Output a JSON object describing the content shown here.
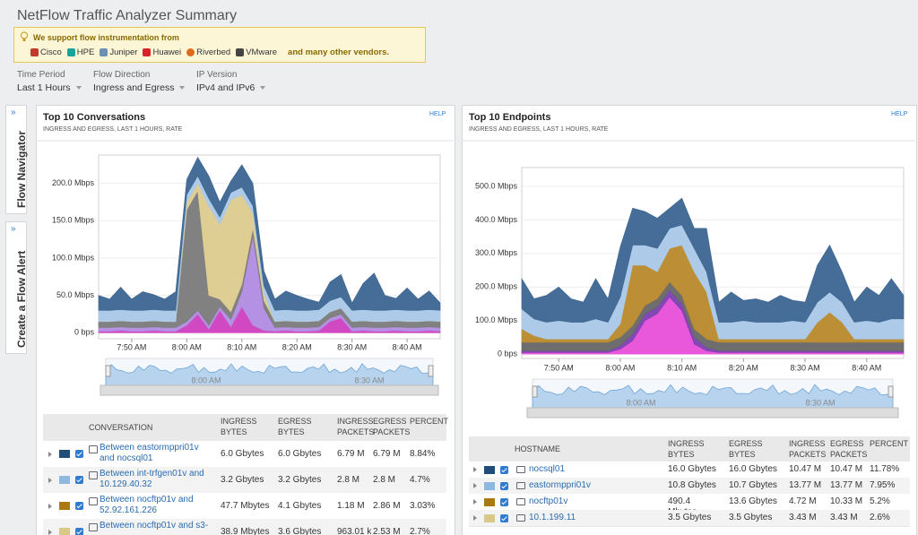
{
  "header": {
    "title": "NetFlow Traffic Analyzer Summary"
  },
  "banner": {
    "text": "We support flow instrumentation from",
    "vendors": [
      "Cisco",
      "HPE",
      "Juniper",
      "Huawei",
      "Riverbed",
      "VMware"
    ],
    "more": "and many other vendors."
  },
  "filters": [
    {
      "label": "Time Period",
      "value": "Last 1 Hours"
    },
    {
      "label": "Flow Direction",
      "value": "Ingress and Egress"
    },
    {
      "label": "IP Version",
      "value": "IPv4 and IPv6"
    }
  ],
  "sidebar": [
    "Flow Navigator",
    "Create a Flow Alert"
  ],
  "panels": [
    {
      "title": "Top 10 Conversations",
      "subtitle": "INGRESS AND EGRESS, LAST 1 HOURS, RATE",
      "help": "HELP",
      "chart": {
        "type": "area",
        "stacked": true,
        "grid": true,
        "x": [
          464,
          466,
          468,
          470,
          472,
          474,
          476,
          478,
          480,
          482,
          484,
          486,
          488,
          490,
          492,
          494,
          496,
          498,
          500,
          502,
          504,
          506,
          508,
          510,
          512,
          514,
          516,
          518,
          520,
          522,
          524,
          526
        ],
        "xlim": [
          464,
          526
        ],
        "xticks": [
          {
            "value": 470,
            "label": "7:50 AM"
          },
          {
            "value": 480,
            "label": "8:00 AM"
          },
          {
            "value": 490,
            "label": "8:10 AM"
          },
          {
            "value": 500,
            "label": "8:20 AM"
          },
          {
            "value": 510,
            "label": "8:30 AM"
          },
          {
            "value": 520,
            "label": "8:40 AM"
          }
        ],
        "ylim": [
          -8,
          238
        ],
        "yticks": [
          {
            "value": 0,
            "label": "0 bps"
          },
          {
            "value": 50,
            "label": "50.0 Mbps"
          },
          {
            "value": 100,
            "label": "100.0 Mbps"
          },
          {
            "value": 150,
            "label": "150.0 Mbps"
          },
          {
            "value": 200,
            "label": "200.0 Mbps"
          }
        ],
        "series": [
          {
            "color": "#cf3fbf",
            "values": [
              2,
              2,
              3,
              2,
              2,
              3,
              2,
              2,
              10,
              25,
              5,
              30,
              8,
              35,
              10,
              3,
              2,
              3,
              2,
              2,
              3,
              15,
              20,
              2,
              3,
              2,
              2,
              3,
              2,
              2,
              3,
              2
            ]
          },
          {
            "color": "#b08be0",
            "values": [
              5,
              5,
              5,
              5,
              5,
              5,
              5,
              5,
              5,
              5,
              5,
              5,
              10,
              20,
              120,
              30,
              5,
              5,
              5,
              5,
              5,
              5,
              5,
              5,
              5,
              5,
              5,
              5,
              5,
              5,
              5,
              5
            ]
          },
          {
            "color": "#7a7a7a",
            "values": [
              8,
              8,
              8,
              8,
              8,
              8,
              8,
              8,
              150,
              160,
              40,
              10,
              10,
              10,
              10,
              10,
              8,
              8,
              8,
              8,
              8,
              8,
              8,
              8,
              8,
              8,
              8,
              8,
              8,
              8,
              8,
              8
            ]
          },
          {
            "color": "#dccb8e",
            "values": [
              0,
              0,
              0,
              0,
              0,
              0,
              0,
              0,
              10,
              10,
              120,
              100,
              150,
              120,
              20,
              10,
              0,
              0,
              0,
              0,
              0,
              0,
              0,
              0,
              0,
              0,
              0,
              0,
              0,
              0,
              0,
              0
            ]
          },
          {
            "color": "#a9c8e8",
            "values": [
              15,
              15,
              15,
              15,
              15,
              15,
              15,
              15,
              10,
              10,
              10,
              10,
              10,
              10,
              10,
              10,
              15,
              15,
              15,
              15,
              15,
              15,
              15,
              15,
              15,
              15,
              15,
              15,
              15,
              15,
              15,
              15
            ]
          },
          {
            "color": "#3b6591",
            "values": [
              20,
              15,
              30,
              15,
              25,
              20,
              15,
              25,
              20,
              25,
              30,
              20,
              15,
              30,
              30,
              20,
              15,
              25,
              20,
              15,
              10,
              25,
              30,
              10,
              35,
              50,
              20,
              15,
              30,
              15,
              25,
              10
            ]
          }
        ]
      },
      "navigator": {
        "labels": [
          "8:00 AM",
          "8:30 AM"
        ]
      },
      "table": {
        "columns": [
          "CONVERSATION",
          "INGRESS BYTES",
          "EGRESS BYTES",
          "INGRESS PACKETS",
          "EGRESS PACKETS",
          "PERCENT"
        ],
        "rows": [
          {
            "color": "#1f4e79",
            "cells": [
              "Between eastormppri01v and nocsql01",
              "6.0 Gbytes",
              "6.0 Gbytes",
              "6.79 M",
              "6.79 M",
              "8.84%"
            ]
          },
          {
            "color": "#8fb8e0",
            "cells": [
              "Between int-trfgen01v and 10.129.40.32",
              "3.2 Gbytes",
              "3.2 Gbytes",
              "2.8 M",
              "2.8 M",
              "4.7%"
            ]
          },
          {
            "color": "#a87a10",
            "cells": [
              "Between nocftp01v and 52.92.161.226",
              "47.7 Mbytes",
              "4.1 Gbytes",
              "1.18 M",
              "2.86 M",
              "3.03%"
            ]
          },
          {
            "color": "#d8c98a",
            "cells": [
              "Between nocftp01v and s3-",
              "38.9 Mbytes",
              "3.6 Gbytes",
              "963.01 k",
              "2.53 M",
              "2.7%"
            ]
          }
        ]
      }
    },
    {
      "title": "Top 10 Endpoints",
      "subtitle": "INGRESS AND EGRESS, LAST 1 HOURS, RATE",
      "help": "HELP",
      "chart": {
        "type": "area",
        "stacked": true,
        "grid": true,
        "x": [
          464,
          466,
          468,
          470,
          472,
          474,
          476,
          478,
          480,
          482,
          484,
          486,
          488,
          490,
          492,
          494,
          496,
          498,
          500,
          502,
          504,
          506,
          508,
          510,
          512,
          514,
          516,
          518,
          520,
          522,
          524,
          526
        ],
        "xlim": [
          464,
          526
        ],
        "xticks": [
          {
            "value": 470,
            "label": "7:50 AM"
          },
          {
            "value": 480,
            "label": "8:00 AM"
          },
          {
            "value": 490,
            "label": "8:10 AM"
          },
          {
            "value": 500,
            "label": "8:20 AM"
          },
          {
            "value": 510,
            "label": "8:30 AM"
          },
          {
            "value": 520,
            "label": "8:40 AM"
          }
        ],
        "ylim": [
          -13,
          556
        ],
        "yticks": [
          {
            "value": 0,
            "label": "0 bps"
          },
          {
            "value": 100,
            "label": "100.0 Mbps"
          },
          {
            "value": 200,
            "label": "200.0 Mbps"
          },
          {
            "value": 300,
            "label": "300.0 Mbps"
          },
          {
            "value": 400,
            "label": "400.0 Mbps"
          },
          {
            "value": 500,
            "label": "500.0 Mbps"
          }
        ],
        "series": [
          {
            "color": "#e84fd8",
            "values": [
              5,
              5,
              5,
              5,
              5,
              5,
              5,
              5,
              15,
              40,
              100,
              120,
              170,
              130,
              30,
              10,
              5,
              5,
              5,
              5,
              5,
              5,
              5,
              5,
              5,
              5,
              5,
              5,
              5,
              5,
              5,
              5
            ]
          },
          {
            "color": "#7b3fb0",
            "values": [
              5,
              5,
              5,
              5,
              5,
              5,
              5,
              5,
              10,
              20,
              20,
              20,
              20,
              20,
              20,
              10,
              5,
              5,
              5,
              5,
              5,
              5,
              5,
              5,
              5,
              5,
              5,
              5,
              5,
              5,
              5,
              5
            ]
          },
          {
            "color": "#666666",
            "values": [
              25,
              25,
              25,
              25,
              25,
              25,
              25,
              25,
              25,
              25,
              25,
              25,
              25,
              25,
              25,
              25,
              25,
              25,
              25,
              25,
              25,
              25,
              25,
              25,
              25,
              25,
              25,
              25,
              25,
              25,
              25,
              25
            ]
          },
          {
            "color": "#b8892b",
            "values": [
              40,
              20,
              10,
              10,
              10,
              10,
              10,
              10,
              40,
              180,
              120,
              80,
              100,
              150,
              170,
              140,
              10,
              10,
              10,
              10,
              10,
              10,
              10,
              10,
              60,
              90,
              60,
              10,
              10,
              10,
              10,
              10
            ]
          },
          {
            "color": "#a9c8e8",
            "values": [
              60,
              50,
              50,
              55,
              50,
              50,
              60,
              50,
              80,
              60,
              60,
              70,
              60,
              60,
              70,
              60,
              50,
              50,
              55,
              50,
              50,
              50,
              55,
              50,
              60,
              60,
              60,
              50,
              55,
              50,
              60,
              60
            ]
          },
          {
            "color": "#3b6591",
            "values": [
              90,
              60,
              80,
              100,
              70,
              60,
              120,
              70,
              150,
              110,
              100,
              90,
              60,
              80,
              60,
              130,
              60,
              90,
              60,
              70,
              60,
              80,
              60,
              60,
              110,
              140,
              90,
              60,
              100,
              80,
              120,
              70
            ]
          }
        ]
      },
      "navigator": {
        "labels": [
          "8:00 AM",
          "8:30 AM"
        ]
      },
      "table": {
        "columns": [
          "HOSTNAME",
          "INGRESS BYTES",
          "EGRESS BYTES",
          "INGRESS PACKETS",
          "EGRESS PACKETS",
          "PERCENT"
        ],
        "rows": [
          {
            "color": "#1f4e79",
            "cells": [
              "nocsql01",
              "16.0 Gbytes",
              "16.0 Gbytes",
              "10.47 M",
              "10.47 M",
              "11.78%"
            ]
          },
          {
            "color": "#8fb8e0",
            "cells": [
              "eastormppri01v",
              "10.8 Gbytes",
              "10.7 Gbytes",
              "13.77 M",
              "13.77 M",
              "7.95%"
            ]
          },
          {
            "color": "#a87a10",
            "cells": [
              "nocftp01v",
              "490.4 Mbytes",
              "13.6 Gbytes",
              "4.72 M",
              "10.33 M",
              "5.2%"
            ]
          },
          {
            "color": "#d8c98a",
            "cells": [
              "10.1.199.11",
              "3.5 Gbytes",
              "3.5 Gbytes",
              "3.43 M",
              "3.43 M",
              "2.6%"
            ]
          }
        ]
      }
    }
  ]
}
